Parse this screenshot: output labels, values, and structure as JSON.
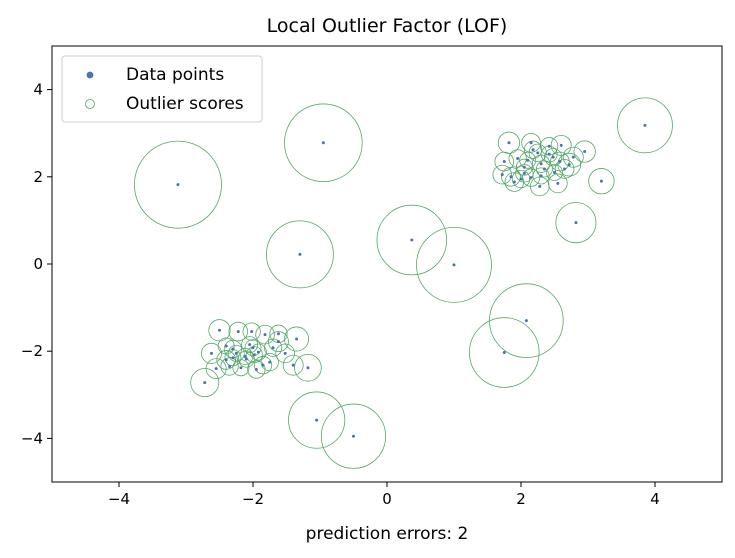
{
  "chart_data": {
    "type": "scatter",
    "title": "Local Outlier Factor (LOF)",
    "xlabel": "prediction errors: 2",
    "ylabel": "",
    "xlim": [
      -5,
      5
    ],
    "ylim": [
      -5,
      5
    ],
    "xticks": [
      -4,
      -2,
      0,
      2,
      4
    ],
    "yticks": [
      -4,
      -2,
      0,
      2,
      4
    ],
    "xtick_labels": [
      "−4",
      "−2",
      "0",
      "2",
      "4"
    ],
    "ytick_labels": [
      "−4",
      "−2",
      "0",
      "2",
      "4"
    ],
    "grid": false,
    "legend": {
      "position": "top-left",
      "entries": [
        "Data points",
        "Outlier scores"
      ]
    },
    "colors": {
      "points": "#4c72b0",
      "circles": "#55a868",
      "frame": "#000000"
    },
    "series": [
      {
        "name": "Data points",
        "kind": "points",
        "x": [
          -3.12,
          -0.95,
          -1.3,
          0.37,
          1.0,
          1.75,
          2.08,
          2.82,
          3.85,
          -1.05,
          -0.5,
          1.82,
          2.15,
          2.42,
          2.6,
          2.78,
          2.95,
          3.2,
          1.75,
          1.95,
          2.1,
          2.25,
          2.42,
          2.58,
          1.85,
          2.05,
          2.3,
          2.5,
          2.72,
          2.05,
          2.3,
          2.55,
          1.72,
          1.9,
          2.15,
          2.35,
          2.18,
          2.0,
          2.28,
          2.48,
          2.65,
          -2.5,
          -2.22,
          -2.02,
          -1.82,
          -1.62,
          -1.35,
          -2.62,
          -2.3,
          -2.05,
          -1.92,
          -1.7,
          -1.52,
          -2.4,
          -2.12,
          -1.98,
          -1.75,
          -1.4,
          -2.55,
          -2.35,
          -2.18,
          -1.95,
          -1.18,
          -2.72,
          -2.4,
          -2.3,
          -2.0,
          -1.85,
          -2.1,
          -2.25,
          -1.62
        ],
        "y": [
          1.82,
          2.78,
          0.22,
          0.55,
          -0.02,
          -2.03,
          -1.3,
          0.95,
          3.18,
          -3.58,
          -3.95,
          2.78,
          2.78,
          2.7,
          2.72,
          2.45,
          2.58,
          1.9,
          2.35,
          2.42,
          2.38,
          2.55,
          2.52,
          2.35,
          2.0,
          2.08,
          2.3,
          2.1,
          2.28,
          2.22,
          2.02,
          1.85,
          2.05,
          1.88,
          1.98,
          2.18,
          2.62,
          1.95,
          1.78,
          2.45,
          2.18,
          -1.52,
          -1.55,
          -1.55,
          -1.62,
          -1.78,
          -1.72,
          -2.05,
          -1.95,
          -1.85,
          -2.02,
          -1.92,
          -2.05,
          -2.2,
          -2.12,
          -2.08,
          -2.25,
          -2.32,
          -2.4,
          -2.35,
          -2.38,
          -2.42,
          -2.38,
          -2.72,
          -1.88,
          -2.15,
          -1.92,
          -2.32,
          -2.18,
          -2.05,
          -1.6
        ],
        "marker_size": 3
      },
      {
        "name": "Outlier scores",
        "kind": "circles",
        "x": [
          -3.12,
          -0.95,
          -1.3,
          0.37,
          1.0,
          1.75,
          2.08,
          2.82,
          3.85,
          -1.05,
          -0.5,
          1.82,
          2.15,
          2.42,
          2.6,
          2.78,
          2.95,
          3.2,
          1.75,
          1.95,
          2.1,
          2.25,
          2.42,
          2.58,
          1.85,
          2.05,
          2.3,
          2.5,
          2.72,
          2.05,
          2.3,
          2.55,
          1.72,
          1.9,
          2.15,
          2.35,
          2.18,
          2.0,
          2.28,
          2.48,
          2.65,
          -2.5,
          -2.22,
          -2.02,
          -1.82,
          -1.62,
          -1.35,
          -2.62,
          -2.3,
          -2.05,
          -1.92,
          -1.7,
          -1.52,
          -2.4,
          -2.12,
          -1.98,
          -1.75,
          -1.4,
          -2.55,
          -2.35,
          -2.18,
          -1.95,
          -1.18,
          -2.72,
          -2.4,
          -2.3,
          -2.0,
          -1.85,
          -2.1,
          -2.25,
          -1.62
        ],
        "y": [
          1.82,
          2.78,
          0.22,
          0.55,
          -0.02,
          -2.03,
          -1.3,
          0.95,
          3.18,
          -3.58,
          -3.95,
          2.78,
          2.78,
          2.7,
          2.72,
          2.45,
          2.58,
          1.9,
          2.35,
          2.42,
          2.38,
          2.55,
          2.52,
          2.35,
          2.0,
          2.08,
          2.3,
          2.1,
          2.28,
          2.22,
          2.02,
          1.85,
          2.05,
          1.88,
          1.98,
          2.18,
          2.62,
          1.95,
          1.78,
          2.45,
          2.18,
          -1.52,
          -1.55,
          -1.55,
          -1.62,
          -1.78,
          -1.72,
          -2.05,
          -1.95,
          -1.85,
          -2.02,
          -1.92,
          -2.05,
          -2.2,
          -2.12,
          -2.08,
          -2.25,
          -2.32,
          -2.4,
          -2.35,
          -2.38,
          -2.42,
          -2.38,
          -2.72,
          -1.88,
          -2.15,
          -1.92,
          -2.32,
          -2.18,
          -2.05,
          -1.6
        ],
        "radius": [
          0.65,
          0.58,
          0.5,
          0.52,
          0.56,
          0.52,
          0.55,
          0.3,
          0.41,
          0.42,
          0.48,
          0.16,
          0.14,
          0.13,
          0.15,
          0.15,
          0.16,
          0.19,
          0.14,
          0.13,
          0.12,
          0.13,
          0.12,
          0.14,
          0.14,
          0.13,
          0.13,
          0.12,
          0.17,
          0.12,
          0.12,
          0.14,
          0.14,
          0.14,
          0.13,
          0.12,
          0.13,
          0.13,
          0.14,
          0.13,
          0.14,
          0.16,
          0.14,
          0.13,
          0.14,
          0.15,
          0.18,
          0.15,
          0.13,
          0.12,
          0.12,
          0.13,
          0.14,
          0.14,
          0.12,
          0.12,
          0.13,
          0.15,
          0.15,
          0.13,
          0.12,
          0.13,
          0.2,
          0.21,
          0.12,
          0.12,
          0.12,
          0.13,
          0.12,
          0.12,
          0.13
        ]
      }
    ]
  }
}
